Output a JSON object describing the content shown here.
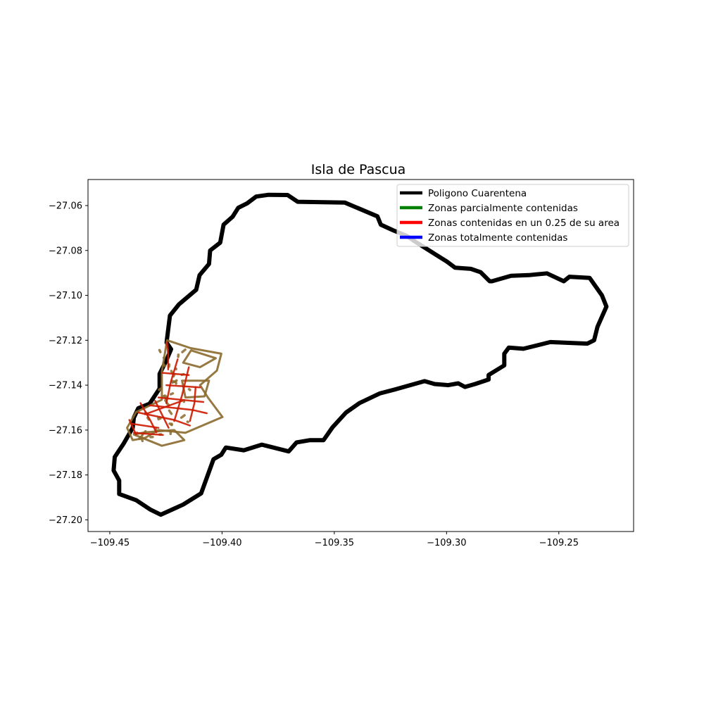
{
  "chart_data": {
    "type": "line",
    "title": "Isla de Pascua",
    "xlabel": "",
    "ylabel": "",
    "xlim": [
      -109.4597,
      -109.2167
    ],
    "ylim": [
      -27.2052,
      -27.0484
    ],
    "xticks": [
      -109.45,
      -109.4,
      -109.35,
      -109.3,
      -109.25
    ],
    "xtick_labels": [
      "−109.45",
      "−109.40",
      "−109.35",
      "−109.30",
      "−109.25"
    ],
    "yticks": [
      -27.06,
      -27.08,
      -27.1,
      -27.12,
      -27.14,
      -27.16,
      -27.18,
      -27.2
    ],
    "ytick_labels": [
      "−27.06",
      "−27.08",
      "−27.10",
      "−27.12",
      "−27.14",
      "−27.16",
      "−27.18",
      "−27.20"
    ],
    "grid": false,
    "legend_position": "top-right",
    "legend": [
      {
        "label": "Poligono Cuarentena",
        "color": "#000000"
      },
      {
        "label": "Zonas parcialmente contenidas",
        "color": "#008000"
      },
      {
        "label": "Zonas contenidas en un 0.25 de su area",
        "color": "#ff0000"
      },
      {
        "label": "Zonas totalmente contenidas",
        "color": "#0000ff"
      }
    ],
    "series": [
      {
        "name": "Poligono Cuarentena",
        "color": "#000000",
        "coords": [
          [
            -109.4247,
            -27.121
          ],
          [
            -109.4232,
            -27.109
          ],
          [
            -109.4192,
            -27.104
          ],
          [
            -109.4115,
            -27.0975
          ],
          [
            -109.41,
            -27.091
          ],
          [
            -109.4058,
            -27.086
          ],
          [
            -109.4053,
            -27.08
          ],
          [
            -109.4008,
            -27.0765
          ],
          [
            -109.3993,
            -27.0685
          ],
          [
            -109.3953,
            -27.065
          ],
          [
            -109.3928,
            -27.061
          ],
          [
            -109.3888,
            -27.059
          ],
          [
            -109.3848,
            -27.056
          ],
          [
            -109.3793,
            -27.0552
          ],
          [
            -109.3708,
            -27.0553
          ],
          [
            -109.3663,
            -27.0583
          ],
          [
            -109.3453,
            -27.0587
          ],
          [
            -109.3308,
            -27.0648
          ],
          [
            -109.3293,
            -27.0685
          ],
          [
            -109.3238,
            -27.071
          ],
          [
            -109.3178,
            -27.0735
          ],
          [
            -109.3133,
            -27.0765
          ],
          [
            -109.3038,
            -27.0825
          ],
          [
            -109.2998,
            -27.085
          ],
          [
            -109.2962,
            -27.0877
          ],
          [
            -109.2892,
            -27.0882
          ],
          [
            -109.2848,
            -27.0897
          ],
          [
            -109.2808,
            -27.0937
          ],
          [
            -109.2798,
            -27.0937
          ],
          [
            -109.2713,
            -27.0913
          ],
          [
            -109.2633,
            -27.091
          ],
          [
            -109.2553,
            -27.0902
          ],
          [
            -109.2478,
            -27.0937
          ],
          [
            -109.2453,
            -27.0917
          ],
          [
            -109.2363,
            -27.0922
          ],
          [
            -109.2308,
            -27.1
          ],
          [
            -109.2288,
            -27.105
          ],
          [
            -109.2328,
            -27.114
          ],
          [
            -109.2343,
            -27.12
          ],
          [
            -109.2373,
            -27.1215
          ],
          [
            -109.2538,
            -27.1208
          ],
          [
            -109.2658,
            -27.1238
          ],
          [
            -109.2723,
            -27.1233
          ],
          [
            -109.2743,
            -27.126
          ],
          [
            -109.2743,
            -27.1312
          ],
          [
            -109.2813,
            -27.1355
          ],
          [
            -109.2813,
            -27.1375
          ],
          [
            -109.2873,
            -27.1395
          ],
          [
            -109.2918,
            -27.1408
          ],
          [
            -109.2948,
            -27.1392
          ],
          [
            -109.2993,
            -27.14
          ],
          [
            -109.3053,
            -27.1395
          ],
          [
            -109.3098,
            -27.1382
          ],
          [
            -109.3233,
            -27.142
          ],
          [
            -109.3298,
            -27.1437
          ],
          [
            -109.3388,
            -27.148
          ],
          [
            -109.3448,
            -27.1522
          ],
          [
            -109.3508,
            -27.1588
          ],
          [
            -109.3548,
            -27.1645
          ],
          [
            -109.3608,
            -27.1645
          ],
          [
            -109.3668,
            -27.1655
          ],
          [
            -109.3703,
            -27.1695
          ],
          [
            -109.3823,
            -27.1665
          ],
          [
            -109.3903,
            -27.169
          ],
          [
            -109.3983,
            -27.1678
          ],
          [
            -109.4003,
            -27.171
          ],
          [
            -109.4038,
            -27.173
          ],
          [
            -109.4093,
            -27.1882
          ],
          [
            -109.4173,
            -27.1932
          ],
          [
            -109.4273,
            -27.1977
          ],
          [
            -109.4318,
            -27.1955
          ],
          [
            -109.4383,
            -27.1912
          ],
          [
            -109.4458,
            -27.1885
          ],
          [
            -109.4458,
            -27.1825
          ],
          [
            -109.4483,
            -27.178
          ],
          [
            -109.4478,
            -27.172
          ],
          [
            -109.4438,
            -27.166
          ],
          [
            -109.4398,
            -27.159
          ],
          [
            -109.4393,
            -27.1545
          ],
          [
            -109.4373,
            -27.1503
          ],
          [
            -109.4323,
            -27.1483
          ],
          [
            -109.4278,
            -27.1415
          ],
          [
            -109.4278,
            -27.135
          ],
          [
            -109.4248,
            -27.129
          ],
          [
            -109.4227,
            -27.124
          ],
          [
            -109.4247,
            -27.121
          ]
        ]
      },
      {
        "name": "Zonas parcialmente contenidas",
        "color": "#8b6a2e",
        "polygons": [
          [
            [
              -109.4245,
              -27.12
            ],
            [
              -109.414,
              -27.1235
            ],
            [
              -109.4003,
              -27.126
            ],
            [
              -109.4023,
              -27.1335
            ],
            [
              -109.4098,
              -27.14
            ],
            [
              -109.4063,
              -27.1455
            ],
            [
              -109.3998,
              -27.1542
            ],
            [
              -109.4163,
              -27.1612
            ],
            [
              -109.4283,
              -27.16
            ],
            [
              -109.4343,
              -27.1635
            ],
            [
              -109.4398,
              -27.1645
            ],
            [
              -109.4423,
              -27.159
            ],
            [
              -109.4383,
              -27.152
            ],
            [
              -109.4268,
              -27.1465
            ],
            [
              -109.4268,
              -27.134
            ],
            [
              -109.4245,
              -27.12
            ]
          ],
          [
            [
              -109.4393,
              -27.162
            ],
            [
              -109.4268,
              -27.167
            ],
            [
              -109.4168,
              -27.1645
            ],
            [
              -109.4213,
              -27.16
            ],
            [
              -109.4343,
              -27.161
            ],
            [
              -109.4393,
              -27.162
            ]
          ],
          [
            [
              -109.4138,
              -27.1245
            ],
            [
              -109.4028,
              -27.128
            ],
            [
              -109.4098,
              -27.132
            ],
            [
              -109.4173,
              -27.13
            ],
            [
              -109.4138,
              -27.1245
            ]
          ],
          [
            [
              -109.4178,
              -27.138
            ],
            [
              -109.4058,
              -27.138
            ],
            [
              -109.4078,
              -27.145
            ],
            [
              -109.4163,
              -27.1455
            ],
            [
              -109.4178,
              -27.138
            ]
          ]
        ]
      },
      {
        "name": "Zonas contenidas en un 0.25 de su area",
        "color": "#cc1a00",
        "polylines": [
          [
            [
              -109.4245,
              -27.121
            ],
            [
              -109.424,
              -27.1265
            ],
            [
              -109.424,
              -27.133
            ]
          ],
          [
            [
              -109.4265,
              -27.1345
            ],
            [
              -109.4148,
              -27.1355
            ]
          ],
          [
            [
              -109.4248,
              -27.14
            ],
            [
              -109.4098,
              -27.141
            ]
          ],
          [
            [
              -109.4283,
              -27.1455
            ],
            [
              -109.4083,
              -27.1475
            ]
          ],
          [
            [
              -109.4323,
              -27.149
            ],
            [
              -109.4133,
              -27.151
            ],
            [
              -109.4068,
              -27.1525
            ]
          ],
          [
            [
              -109.4373,
              -27.1522
            ],
            [
              -109.4213,
              -27.1555
            ],
            [
              -109.4143,
              -27.158
            ]
          ],
          [
            [
              -109.4403,
              -27.1572
            ],
            [
              -109.4283,
              -27.159
            ]
          ],
          [
            [
              -109.4393,
              -27.1612
            ],
            [
              -109.4263,
              -27.1622
            ]
          ],
          [
            [
              -109.4198,
              -27.1285
            ],
            [
              -109.4228,
              -27.1385
            ],
            [
              -109.4248,
              -27.148
            ]
          ],
          [
            [
              -109.4148,
              -27.132
            ],
            [
              -109.4178,
              -27.1445
            ],
            [
              -109.4213,
              -27.156
            ]
          ],
          [
            [
              -109.4363,
              -27.148
            ],
            [
              -109.4318,
              -27.156
            ],
            [
              -109.4293,
              -27.161
            ]
          ],
          [
            [
              -109.4298,
              -27.147
            ],
            [
              -109.4263,
              -27.154
            ],
            [
              -109.4238,
              -27.159
            ]
          ],
          [
            [
              -109.4118,
              -27.141
            ],
            [
              -109.4123,
              -27.148
            ],
            [
              -109.4143,
              -27.156
            ]
          ],
          [
            [
              -109.4413,
              -27.1555
            ],
            [
              -109.4383,
              -27.162
            ]
          ],
          [
            [
              -109.4343,
              -27.153
            ],
            [
              -109.4178,
              -27.147
            ]
          ]
        ]
      },
      {
        "name": "Zonas totalmente contenidas",
        "color": "#0000ff",
        "polylines": []
      }
    ]
  }
}
